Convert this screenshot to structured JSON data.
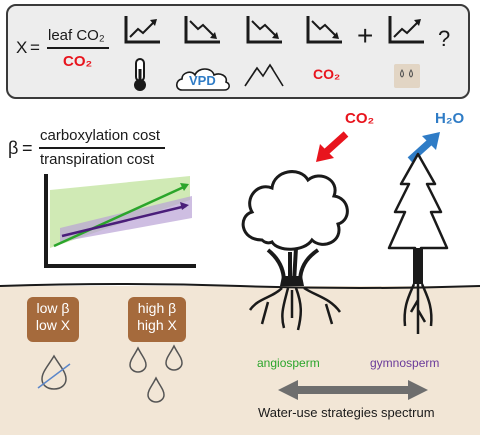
{
  "top_panel": {
    "x_symbol": "X",
    "equals": "=",
    "numerator": "leaf CO₂",
    "denominator": "CO₂",
    "vpd_label": "VPD",
    "co2_label": "CO₂",
    "plus": "+",
    "question": "?",
    "icons": [
      "thermometer-icon",
      "cloud-icon",
      "mountain-icon",
      "water-drops-icon"
    ],
    "trends": [
      "up",
      "down",
      "down",
      "down",
      "up"
    ]
  },
  "beta": {
    "symbol": "β",
    "equals": "=",
    "numerator": "carboxylation cost",
    "denominator": "transpiration cost"
  },
  "gas_labels": {
    "co2": "CO₂",
    "h2o": "H₂O"
  },
  "badges": {
    "low": {
      "line1": "low β",
      "line2": "low X"
    },
    "high": {
      "line1": "high β",
      "line2": "high X"
    }
  },
  "trees": {
    "angiosperm": "angiosperm",
    "gymnosperm": "gymnosperm"
  },
  "spectrum_label": "Water-use strategies spectrum",
  "colors": {
    "red": "#e8141d",
    "blue": "#2f7cc6",
    "green": "#2ba52b",
    "purple": "#6a3a9a",
    "soil": "#f2e6d6",
    "badge": "#a56a3c"
  }
}
